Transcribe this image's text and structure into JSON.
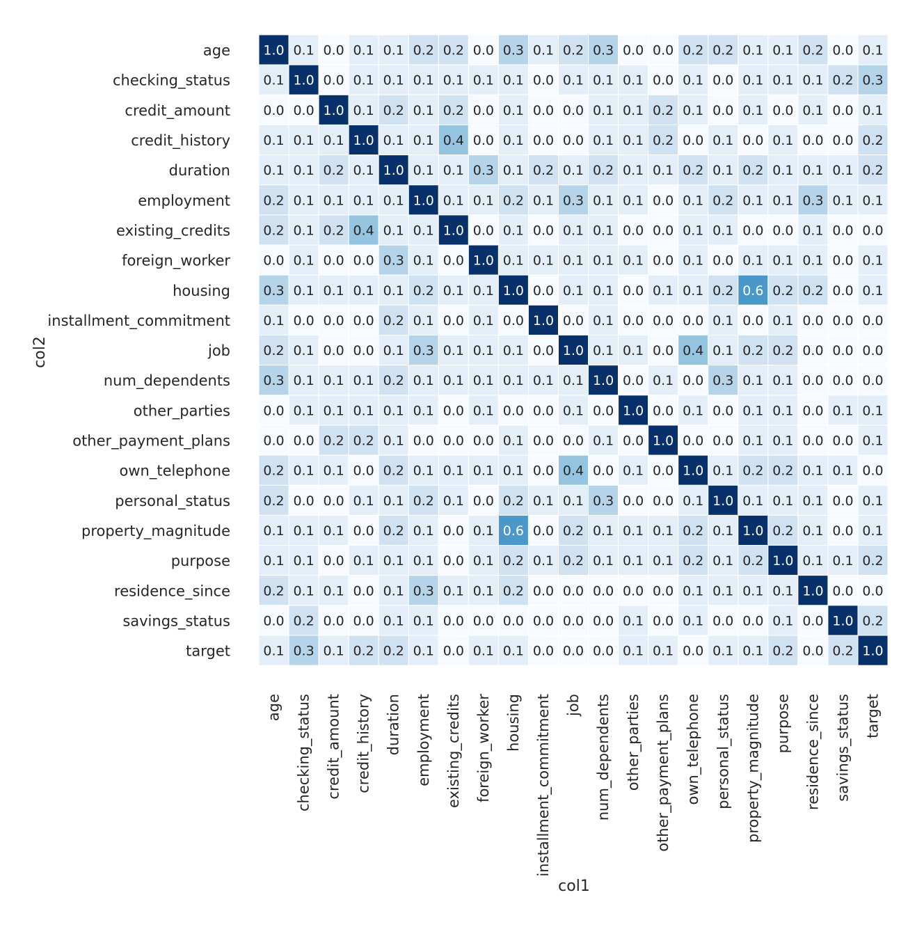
{
  "chart_data": {
    "type": "heatmap",
    "xlabel": "col1",
    "ylabel": "col2",
    "x_categories": [
      "age",
      "checking_status",
      "credit_amount",
      "credit_history",
      "duration",
      "employment",
      "existing_credits",
      "foreign_worker",
      "housing",
      "installment_commitment",
      "job",
      "num_dependents",
      "other_parties",
      "other_payment_plans",
      "own_telephone",
      "personal_status",
      "property_magnitude",
      "purpose",
      "residence_since",
      "savings_status",
      "target"
    ],
    "y_categories": [
      "age",
      "checking_status",
      "credit_amount",
      "credit_history",
      "duration",
      "employment",
      "existing_credits",
      "foreign_worker",
      "housing",
      "installment_commitment",
      "job",
      "num_dependents",
      "other_parties",
      "other_payment_plans",
      "own_telephone",
      "personal_status",
      "property_magnitude",
      "purpose",
      "residence_since",
      "savings_status",
      "target"
    ],
    "values": [
      [
        1.0,
        0.1,
        0.0,
        0.1,
        0.1,
        0.2,
        0.2,
        0.0,
        0.3,
        0.1,
        0.2,
        0.3,
        0.0,
        0.0,
        0.2,
        0.2,
        0.1,
        0.1,
        0.2,
        0.0,
        0.1
      ],
      [
        0.1,
        1.0,
        0.0,
        0.1,
        0.1,
        0.1,
        0.1,
        0.1,
        0.1,
        0.0,
        0.1,
        0.1,
        0.1,
        0.0,
        0.1,
        0.0,
        0.1,
        0.1,
        0.1,
        0.2,
        0.3
      ],
      [
        0.0,
        0.0,
        1.0,
        0.1,
        0.2,
        0.1,
        0.2,
        0.0,
        0.1,
        0.0,
        0.0,
        0.1,
        0.1,
        0.2,
        0.1,
        0.0,
        0.1,
        0.0,
        0.1,
        0.0,
        0.1
      ],
      [
        0.1,
        0.1,
        0.1,
        1.0,
        0.1,
        0.1,
        0.4,
        0.0,
        0.1,
        0.0,
        0.0,
        0.1,
        0.1,
        0.2,
        0.0,
        0.1,
        0.0,
        0.1,
        0.0,
        0.0,
        0.2
      ],
      [
        0.1,
        0.1,
        0.2,
        0.1,
        1.0,
        0.1,
        0.1,
        0.3,
        0.1,
        0.2,
        0.1,
        0.2,
        0.1,
        0.1,
        0.2,
        0.1,
        0.2,
        0.1,
        0.1,
        0.1,
        0.2
      ],
      [
        0.2,
        0.1,
        0.1,
        0.1,
        0.1,
        1.0,
        0.1,
        0.1,
        0.2,
        0.1,
        0.3,
        0.1,
        0.1,
        0.0,
        0.1,
        0.2,
        0.1,
        0.1,
        0.3,
        0.1,
        0.1
      ],
      [
        0.2,
        0.1,
        0.2,
        0.4,
        0.1,
        0.1,
        1.0,
        0.0,
        0.1,
        0.0,
        0.1,
        0.1,
        0.0,
        0.0,
        0.1,
        0.1,
        0.0,
        0.0,
        0.1,
        0.0,
        0.0
      ],
      [
        0.0,
        0.1,
        0.0,
        0.0,
        0.3,
        0.1,
        0.0,
        1.0,
        0.1,
        0.1,
        0.1,
        0.1,
        0.1,
        0.0,
        0.1,
        0.0,
        0.1,
        0.1,
        0.1,
        0.0,
        0.1
      ],
      [
        0.3,
        0.1,
        0.1,
        0.1,
        0.1,
        0.2,
        0.1,
        0.1,
        1.0,
        0.0,
        0.1,
        0.1,
        0.0,
        0.1,
        0.1,
        0.2,
        0.6,
        0.2,
        0.2,
        0.0,
        0.1
      ],
      [
        0.1,
        0.0,
        0.0,
        0.0,
        0.2,
        0.1,
        0.0,
        0.1,
        0.0,
        1.0,
        0.0,
        0.1,
        0.0,
        0.0,
        0.0,
        0.1,
        0.0,
        0.1,
        0.0,
        0.0,
        0.0
      ],
      [
        0.2,
        0.1,
        0.0,
        0.0,
        0.1,
        0.3,
        0.1,
        0.1,
        0.1,
        0.0,
        1.0,
        0.1,
        0.1,
        0.0,
        0.4,
        0.1,
        0.2,
        0.2,
        0.0,
        0.0,
        0.0
      ],
      [
        0.3,
        0.1,
        0.1,
        0.1,
        0.2,
        0.1,
        0.1,
        0.1,
        0.1,
        0.1,
        0.1,
        1.0,
        0.0,
        0.1,
        0.0,
        0.3,
        0.1,
        0.1,
        0.0,
        0.0,
        0.0
      ],
      [
        0.0,
        0.1,
        0.1,
        0.1,
        0.1,
        0.1,
        0.0,
        0.1,
        0.0,
        0.0,
        0.1,
        0.0,
        1.0,
        0.0,
        0.1,
        0.0,
        0.1,
        0.1,
        0.0,
        0.1,
        0.1
      ],
      [
        0.0,
        0.0,
        0.2,
        0.2,
        0.1,
        0.0,
        0.0,
        0.0,
        0.1,
        0.0,
        0.0,
        0.1,
        0.0,
        1.0,
        0.0,
        0.0,
        0.1,
        0.1,
        0.0,
        0.0,
        0.1
      ],
      [
        0.2,
        0.1,
        0.1,
        0.0,
        0.2,
        0.1,
        0.1,
        0.1,
        0.1,
        0.0,
        0.4,
        0.0,
        0.1,
        0.0,
        1.0,
        0.1,
        0.2,
        0.2,
        0.1,
        0.1,
        0.0
      ],
      [
        0.2,
        0.0,
        0.0,
        0.1,
        0.1,
        0.2,
        0.1,
        0.0,
        0.2,
        0.1,
        0.1,
        0.3,
        0.0,
        0.0,
        0.1,
        1.0,
        0.1,
        0.1,
        0.1,
        0.0,
        0.1
      ],
      [
        0.1,
        0.1,
        0.1,
        0.0,
        0.2,
        0.1,
        0.0,
        0.1,
        0.6,
        0.0,
        0.2,
        0.1,
        0.1,
        0.1,
        0.2,
        0.1,
        1.0,
        0.2,
        0.1,
        0.0,
        0.1
      ],
      [
        0.1,
        0.1,
        0.0,
        0.1,
        0.1,
        0.1,
        0.0,
        0.1,
        0.2,
        0.1,
        0.2,
        0.1,
        0.1,
        0.1,
        0.2,
        0.1,
        0.2,
        1.0,
        0.1,
        0.1,
        0.2
      ],
      [
        0.2,
        0.1,
        0.1,
        0.0,
        0.1,
        0.3,
        0.1,
        0.1,
        0.2,
        0.0,
        0.0,
        0.0,
        0.0,
        0.0,
        0.1,
        0.1,
        0.1,
        0.1,
        1.0,
        0.0,
        0.0
      ],
      [
        0.0,
        0.2,
        0.0,
        0.0,
        0.1,
        0.1,
        0.0,
        0.0,
        0.0,
        0.0,
        0.0,
        0.0,
        0.1,
        0.0,
        0.1,
        0.0,
        0.0,
        0.1,
        0.0,
        1.0,
        0.2
      ],
      [
        0.1,
        0.3,
        0.1,
        0.2,
        0.2,
        0.1,
        0.0,
        0.1,
        0.1,
        0.0,
        0.0,
        0.0,
        0.1,
        0.1,
        0.0,
        0.1,
        0.1,
        0.2,
        0.0,
        0.2,
        1.0
      ]
    ],
    "value_range": [
      0,
      1
    ],
    "annotation_format": "0.0",
    "colormap": "Blues",
    "cell_gridlines": true,
    "colorbar": false,
    "legend": "none",
    "colors": {
      "low": "#f7fbff",
      "high": "#08306b",
      "cell_border": "#ffffff",
      "text_dark": "#262626",
      "text_light": "#ffffff"
    }
  }
}
